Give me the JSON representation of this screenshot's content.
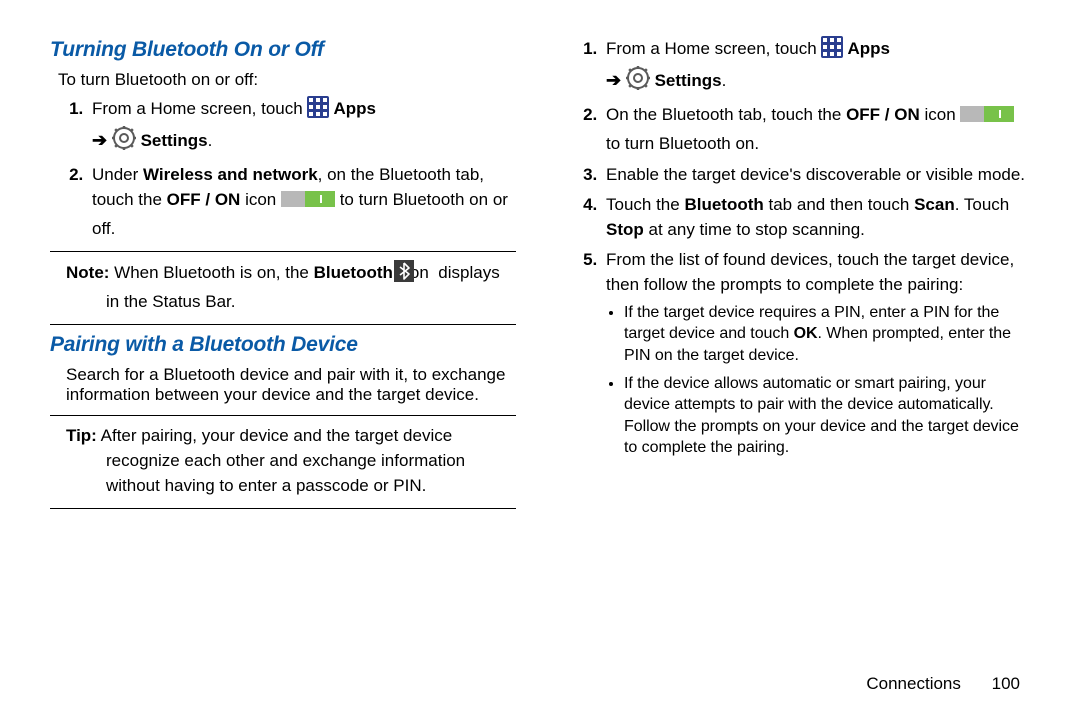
{
  "colors": {
    "heading": "#0a5aa6",
    "text": "#000000",
    "apps_icon_bg": "#2a3e8f",
    "apps_icon_dot": "#ffffff",
    "settings_ring": "#5a5a5a",
    "toggle_off_bg": "#b8b8b8",
    "toggle_on_bg": "#78c24a",
    "toggle_line": "#ffffff",
    "bt_bg": "#3a3a3a",
    "bt_symbol": "#ffffff",
    "rule": "#000000"
  },
  "left": {
    "h_turning": "Turning Bluetooth On or Off",
    "intro": "To turn Bluetooth on or off:",
    "step1_a": "From a Home screen, touch ",
    "apps_label": " Apps",
    "step1_b": "Settings",
    "step2_a": "Under ",
    "step2_bold1": "Wireless and network",
    "step2_b": ", on the Bluetooth tab, touch the ",
    "step2_bold2": "OFF / ON",
    "step2_c": " icon ",
    "step2_d": " to turn Bluetooth on or off.",
    "note_label": "Note:",
    "note_a": " When Bluetooth is on, the ",
    "note_bold": "Bluetooth",
    "note_b": " icon ",
    "note_c": " displays in the Status Bar.",
    "h_pairing": "Pairing with a Bluetooth Device",
    "pair_intro": "Search for a Bluetooth device and pair with it, to exchange information between your device and the target device.",
    "tip_label": "Tip:",
    "tip_body": " After pairing, your device and the target device recognize each other and exchange information without having to enter a passcode or PIN."
  },
  "right": {
    "s1_a": "From a Home screen, touch ",
    "s1_apps": " Apps",
    "s1_b": "Settings",
    "s2_a": "On the Bluetooth tab, touch the ",
    "s2_bold": "OFF / ON",
    "s2_b": " icon ",
    "s2_c": " to turn Bluetooth on.",
    "s3": "Enable the target device's discoverable or visible mode.",
    "s4_a": "Touch the ",
    "s4_b1": "Bluetooth",
    "s4_b": " tab and then touch ",
    "s4_b2": "Scan",
    "s4_c": ". Touch ",
    "s4_b3": "Stop",
    "s4_d": " at any time to stop scanning.",
    "s5": "From the list of found devices, touch the target device, then follow the prompts to complete the pairing:",
    "bul1_a": "If the target device requires a PIN, enter a PIN for the target device and touch ",
    "bul1_bold": "OK",
    "bul1_b": ". When prompted, enter the PIN on the target device.",
    "bul2": "If the device allows automatic or smart pairing, your device attempts to pair with the device automatically. Follow the prompts on your device and the target device to complete the pairing."
  },
  "footer": {
    "section": "Connections",
    "page": "100"
  },
  "arrow_glyph": "➔"
}
